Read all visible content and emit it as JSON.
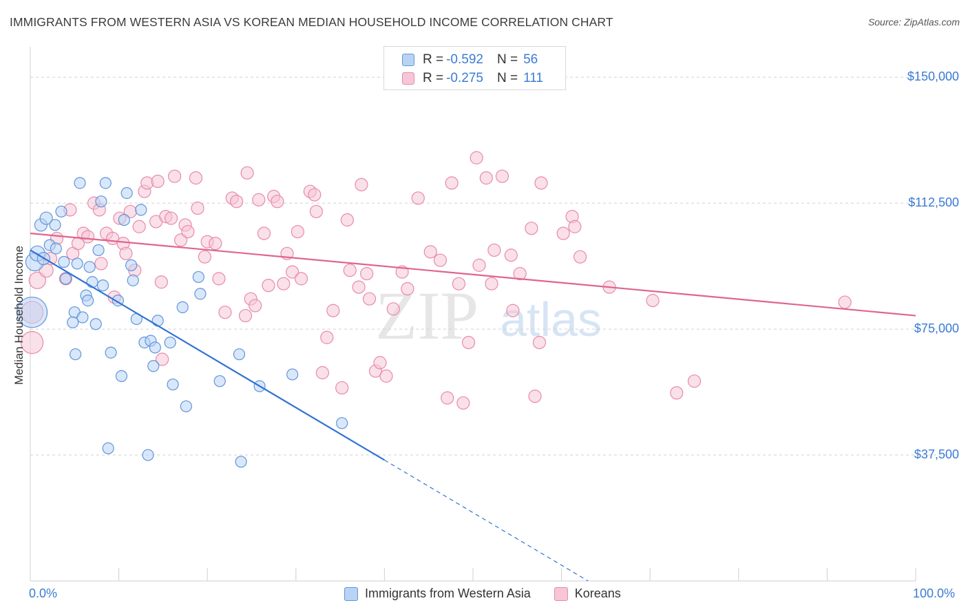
{
  "title": "IMMIGRANTS FROM WESTERN ASIA VS KOREAN MEDIAN HOUSEHOLD INCOME CORRELATION CHART",
  "source": "Source: ZipAtlas.com",
  "watermark": {
    "zip": "ZIP",
    "atlas": "atlas"
  },
  "colors": {
    "blue_fill": "#b9d3f5",
    "blue_stroke": "#5f95d8",
    "blue_line": "#2f72d4",
    "pink_fill": "#f6c6d6",
    "pink_stroke": "#e88aa8",
    "pink_line": "#e0648e",
    "tick_text": "#3b7bd4",
    "grid": "#d0d0d0"
  },
  "legend_top": {
    "rows": [
      {
        "swatch": "blue",
        "r_label": "R = ",
        "r_value": "-0.592",
        "n_label": "N = ",
        "n_value": "56"
      },
      {
        "swatch": "pink",
        "r_label": "R = ",
        "r_value": "-0.275",
        "n_label": "N = ",
        "n_value": "111"
      }
    ]
  },
  "legend_bottom": [
    "Immigrants from Western Asia",
    "Koreans"
  ],
  "chart_data": {
    "type": "scatter",
    "title": "IMMIGRANTS FROM WESTERN ASIA VS KOREAN MEDIAN HOUSEHOLD INCOME CORRELATION CHART",
    "xlabel": "",
    "ylabel": "Median Household Income",
    "xlim": [
      0,
      100
    ],
    "ylim": [
      0,
      157000
    ],
    "x_tick_labels": [
      "0.0%",
      "100.0%"
    ],
    "y_ticks": [
      37500,
      75000,
      112500,
      150000
    ],
    "y_tick_labels": [
      "$37,500",
      "$75,000",
      "$112,500",
      "$150,000"
    ],
    "grid": "horizontal dashed",
    "legend_position": "top-center",
    "series": [
      {
        "name": "Immigrants from Western Asia",
        "color": "blue",
        "trend": {
          "x0": 0,
          "y0": 98500,
          "x1": 40,
          "y1": 36000,
          "dashed_to_x": 63,
          "dashed_to_y": 0
        },
        "points": [
          [
            0.2,
            80000,
            22
          ],
          [
            0.5,
            95000,
            13
          ],
          [
            0.8,
            97500,
            11
          ],
          [
            1.2,
            106000,
            9
          ],
          [
            1.5,
            96000,
            9
          ],
          [
            1.8,
            108000,
            9
          ],
          [
            2.2,
            100000,
            8
          ],
          [
            2.8,
            106000,
            8
          ],
          [
            2.9,
            99000,
            8
          ],
          [
            3.5,
            110000,
            8
          ],
          [
            3.8,
            95000,
            8
          ],
          [
            4.0,
            90000,
            8
          ],
          [
            5.0,
            80000,
            8
          ],
          [
            4.8,
            77000,
            8
          ],
          [
            5.3,
            94500,
            8
          ],
          [
            5.1,
            67500,
            8
          ],
          [
            5.6,
            118500,
            8
          ],
          [
            5.9,
            78500,
            8
          ],
          [
            6.3,
            85000,
            8
          ],
          [
            6.5,
            83500,
            8
          ],
          [
            6.7,
            93500,
            8
          ],
          [
            7.0,
            89000,
            8
          ],
          [
            7.4,
            76500,
            8
          ],
          [
            7.7,
            98500,
            8
          ],
          [
            8.0,
            113000,
            8
          ],
          [
            8.2,
            88000,
            8
          ],
          [
            8.5,
            118500,
            8
          ],
          [
            8.8,
            39500,
            8
          ],
          [
            9.1,
            68000,
            8
          ],
          [
            9.9,
            83500,
            8
          ],
          [
            10.3,
            61000,
            8
          ],
          [
            10.6,
            107500,
            8
          ],
          [
            10.9,
            115500,
            8
          ],
          [
            11.4,
            94000,
            8
          ],
          [
            11.6,
            89500,
            8
          ],
          [
            12.0,
            78000,
            8
          ],
          [
            12.5,
            110500,
            8
          ],
          [
            12.9,
            71000,
            8
          ],
          [
            13.3,
            37500,
            8
          ],
          [
            13.6,
            71500,
            8
          ],
          [
            13.9,
            64000,
            8
          ],
          [
            14.1,
            69500,
            8
          ],
          [
            14.4,
            77500,
            8
          ],
          [
            15.8,
            71000,
            8
          ],
          [
            16.1,
            58500,
            8
          ],
          [
            17.2,
            81500,
            8
          ],
          [
            17.6,
            52000,
            8
          ],
          [
            19.0,
            90500,
            8
          ],
          [
            19.2,
            85500,
            8
          ],
          [
            21.4,
            59500,
            8
          ],
          [
            23.6,
            67500,
            8
          ],
          [
            23.8,
            35500,
            8
          ],
          [
            25.9,
            58000,
            8
          ],
          [
            29.6,
            61500,
            8
          ],
          [
            35.2,
            47000,
            8
          ]
        ]
      },
      {
        "name": "Koreans",
        "color": "pink",
        "trend": {
          "x0": 0,
          "y0": 103500,
          "x1": 100,
          "y1": 79000
        },
        "points": [
          [
            0.2,
            80000,
            16
          ],
          [
            0.2,
            71000,
            16
          ],
          [
            0.8,
            89500,
            12
          ],
          [
            1.8,
            92500,
            10
          ],
          [
            2.3,
            96000,
            9
          ],
          [
            3.0,
            102000,
            9
          ],
          [
            4.0,
            90000,
            9
          ],
          [
            4.5,
            110500,
            9
          ],
          [
            4.8,
            97500,
            9
          ],
          [
            5.4,
            100500,
            9
          ],
          [
            6.0,
            103500,
            9
          ],
          [
            6.5,
            102500,
            9
          ],
          [
            7.2,
            112500,
            9
          ],
          [
            7.8,
            110500,
            9
          ],
          [
            8.0,
            94500,
            9
          ],
          [
            8.6,
            103500,
            9
          ],
          [
            9.3,
            102000,
            9
          ],
          [
            9.5,
            84500,
            9
          ],
          [
            10.1,
            108000,
            9
          ],
          [
            10.5,
            100500,
            9
          ],
          [
            10.8,
            97500,
            9
          ],
          [
            11.3,
            110000,
            9
          ],
          [
            11.8,
            92500,
            9
          ],
          [
            12.3,
            105500,
            9
          ],
          [
            12.9,
            116000,
            9
          ],
          [
            13.2,
            118500,
            9
          ],
          [
            14.2,
            107000,
            9
          ],
          [
            14.4,
            119000,
            9
          ],
          [
            14.8,
            89000,
            9
          ],
          [
            14.9,
            66000,
            9
          ],
          [
            15.3,
            108500,
            9
          ],
          [
            15.9,
            108000,
            9
          ],
          [
            16.3,
            120500,
            9
          ],
          [
            17.0,
            101500,
            9
          ],
          [
            17.5,
            106000,
            9
          ],
          [
            17.8,
            104000,
            9
          ],
          [
            18.7,
            120000,
            9
          ],
          [
            18.9,
            111000,
            9
          ],
          [
            19.7,
            96500,
            9
          ],
          [
            20.0,
            101000,
            9
          ],
          [
            20.9,
            100500,
            9
          ],
          [
            21.3,
            90000,
            9
          ],
          [
            22.0,
            80000,
            9
          ],
          [
            22.8,
            114000,
            9
          ],
          [
            23.3,
            113000,
            9
          ],
          [
            24.3,
            79000,
            9
          ],
          [
            24.5,
            121500,
            9
          ],
          [
            24.9,
            84000,
            9
          ],
          [
            25.4,
            82000,
            9
          ],
          [
            25.8,
            113500,
            9
          ],
          [
            26.4,
            103500,
            9
          ],
          [
            26.9,
            88000,
            9
          ],
          [
            27.5,
            114500,
            9
          ],
          [
            27.9,
            113000,
            9
          ],
          [
            28.6,
            88500,
            9
          ],
          [
            29.0,
            97500,
            9
          ],
          [
            29.6,
            92000,
            9
          ],
          [
            30.2,
            104000,
            9
          ],
          [
            30.6,
            90000,
            9
          ],
          [
            31.6,
            116000,
            9
          ],
          [
            32.1,
            115000,
            9
          ],
          [
            32.3,
            110000,
            9
          ],
          [
            33.0,
            62000,
            9
          ],
          [
            33.5,
            72500,
            9
          ],
          [
            34.2,
            80500,
            9
          ],
          [
            35.2,
            57500,
            9
          ],
          [
            35.8,
            107500,
            9
          ],
          [
            36.1,
            92500,
            9
          ],
          [
            37.1,
            87500,
            9
          ],
          [
            37.4,
            118000,
            9
          ],
          [
            38.0,
            91500,
            9
          ],
          [
            38.3,
            84000,
            9
          ],
          [
            39.0,
            62500,
            9
          ],
          [
            39.5,
            65000,
            9
          ],
          [
            40.2,
            61000,
            9
          ],
          [
            41.0,
            81000,
            9
          ],
          [
            42.0,
            92000,
            9
          ],
          [
            42.6,
            87000,
            9
          ],
          [
            43.8,
            114000,
            9
          ],
          [
            45.2,
            98000,
            9
          ],
          [
            46.3,
            95500,
            9
          ],
          [
            47.1,
            54500,
            9
          ],
          [
            47.6,
            118500,
            9
          ],
          [
            48.4,
            88500,
            9
          ],
          [
            48.9,
            53000,
            9
          ],
          [
            49.5,
            71000,
            9
          ],
          [
            50.4,
            126000,
            9
          ],
          [
            50.7,
            94000,
            9
          ],
          [
            51.5,
            120000,
            9
          ],
          [
            52.1,
            88500,
            9
          ],
          [
            52.4,
            98500,
            9
          ],
          [
            53.3,
            120500,
            9
          ],
          [
            54.3,
            97000,
            9
          ],
          [
            54.5,
            80500,
            9
          ],
          [
            55.3,
            91500,
            9
          ],
          [
            56.6,
            105000,
            9
          ],
          [
            57.0,
            55000,
            9
          ],
          [
            57.5,
            71000,
            9
          ],
          [
            57.7,
            118500,
            9
          ],
          [
            60.2,
            103500,
            9
          ],
          [
            61.2,
            108500,
            9
          ],
          [
            61.5,
            105500,
            9
          ],
          [
            62.1,
            96500,
            9
          ],
          [
            65.4,
            87500,
            9
          ],
          [
            70.3,
            83500,
            9
          ],
          [
            73.0,
            56000,
            9
          ],
          [
            75.0,
            59500,
            9
          ],
          [
            92.0,
            83000,
            9
          ]
        ]
      }
    ]
  }
}
